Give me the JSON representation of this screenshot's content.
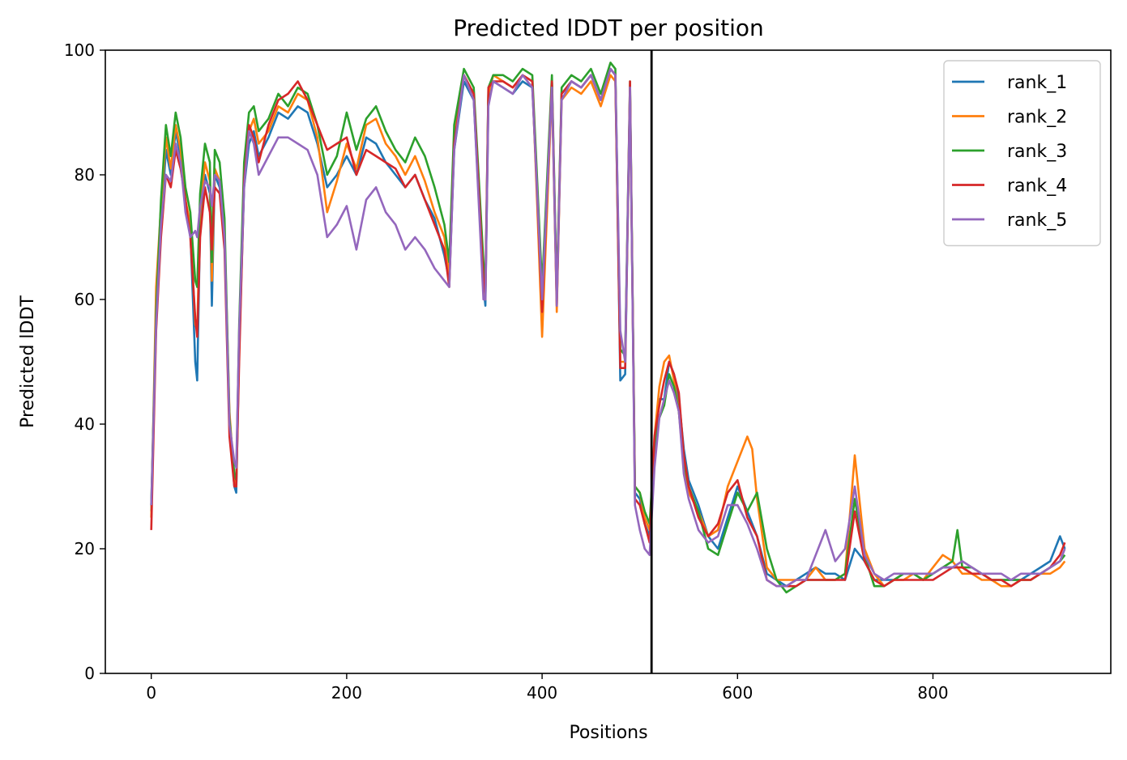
{
  "chart_data": {
    "type": "line",
    "title": "Predicted lDDT per position",
    "xlabel": "Positions",
    "ylabel": "Predicted lDDT",
    "xlim": [
      -47,
      982
    ],
    "ylim": [
      0,
      100
    ],
    "xticks": [
      "0",
      "200",
      "400",
      "600",
      "800"
    ],
    "yticks": [
      "0",
      "20",
      "40",
      "60",
      "80",
      "100"
    ],
    "legend_position": "top-right",
    "vline_x": 512,
    "grid": false,
    "series": [
      {
        "name": "rank_1",
        "color": "#1f77b4",
        "x": [
          0,
          5,
          10,
          15,
          20,
          25,
          30,
          35,
          40,
          45,
          47,
          50,
          55,
          60,
          62,
          65,
          70,
          75,
          80,
          85,
          87,
          90,
          95,
          100,
          105,
          110,
          120,
          130,
          140,
          150,
          160,
          170,
          180,
          190,
          200,
          210,
          220,
          230,
          240,
          250,
          260,
          270,
          280,
          290,
          300,
          305,
          310,
          320,
          330,
          340,
          342,
          345,
          350,
          360,
          370,
          380,
          390,
          400,
          410,
          415,
          420,
          430,
          440,
          450,
          460,
          470,
          475,
          480,
          485,
          490,
          495,
          500,
          505,
          510,
          515,
          520,
          525,
          530,
          535,
          540,
          545,
          550,
          560,
          570,
          580,
          590,
          600,
          610,
          620,
          630,
          640,
          650,
          660,
          670,
          680,
          690,
          700,
          710,
          720,
          730,
          740,
          750,
          760,
          770,
          780,
          790,
          800,
          810,
          820,
          830,
          840,
          850,
          860,
          870,
          880,
          890,
          900,
          910,
          920,
          930,
          935
        ],
        "y": [
          26,
          57,
          72,
          84,
          80,
          87,
          83,
          75,
          71,
          50,
          47,
          72,
          80,
          77,
          59,
          80,
          78,
          70,
          40,
          30,
          29,
          52,
          78,
          85,
          87,
          83,
          86,
          90,
          89,
          91,
          90,
          85,
          78,
          80,
          83,
          80,
          86,
          85,
          82,
          80,
          78,
          80,
          76,
          73,
          67,
          63,
          84,
          95,
          92,
          62,
          59,
          92,
          95,
          94,
          93,
          95,
          94,
          61,
          95,
          60,
          93,
          95,
          94,
          96,
          92,
          97,
          96,
          47,
          48,
          94,
          29,
          28,
          24,
          22,
          36,
          44,
          44,
          50,
          48,
          44,
          36,
          31,
          27,
          22,
          20,
          25,
          30,
          26,
          22,
          16,
          15,
          14,
          15,
          16,
          17,
          16,
          16,
          15,
          20,
          18,
          15,
          15,
          15,
          16,
          16,
          15,
          16,
          17,
          17,
          17,
          16,
          16,
          15,
          15,
          15,
          15,
          16,
          17,
          18,
          22,
          20
        ]
      },
      {
        "name": "rank_2",
        "color": "#ff7f0e",
        "x": [
          0,
          5,
          10,
          15,
          20,
          25,
          30,
          35,
          40,
          45,
          47,
          50,
          55,
          60,
          62,
          65,
          70,
          75,
          80,
          85,
          87,
          90,
          95,
          100,
          105,
          110,
          120,
          130,
          140,
          150,
          160,
          170,
          180,
          190,
          200,
          210,
          220,
          230,
          240,
          250,
          260,
          270,
          280,
          290,
          300,
          305,
          310,
          320,
          330,
          340,
          342,
          345,
          350,
          360,
          370,
          380,
          390,
          395,
          400,
          410,
          415,
          420,
          430,
          440,
          450,
          460,
          470,
          475,
          480,
          485,
          490,
          495,
          500,
          505,
          510,
          515,
          520,
          525,
          530,
          535,
          540,
          545,
          550,
          560,
          570,
          580,
          590,
          600,
          610,
          615,
          620,
          630,
          640,
          650,
          660,
          670,
          680,
          690,
          700,
          710,
          720,
          730,
          740,
          750,
          760,
          770,
          780,
          790,
          800,
          810,
          820,
          830,
          840,
          850,
          860,
          870,
          880,
          890,
          900,
          910,
          920,
          930,
          935
        ],
        "y": [
          25,
          62,
          75,
          86,
          81,
          88,
          84,
          76,
          72,
          56,
          55,
          74,
          82,
          79,
          63,
          81,
          79,
          71,
          42,
          31,
          30,
          54,
          80,
          87,
          89,
          85,
          87,
          91,
          90,
          93,
          92,
          86,
          74,
          79,
          85,
          81,
          88,
          89,
          85,
          83,
          80,
          83,
          79,
          74,
          70,
          64,
          86,
          96,
          93,
          64,
          60,
          93,
          96,
          95,
          94,
          96,
          95,
          75,
          54,
          94,
          58,
          92,
          94,
          93,
          95,
          91,
          96,
          95,
          50,
          50,
          93,
          30,
          29,
          25,
          23,
          38,
          46,
          50,
          51,
          47,
          42,
          33,
          29,
          26,
          22,
          23,
          30,
          34,
          38,
          36,
          28,
          17,
          15,
          15,
          15,
          15,
          17,
          15,
          15,
          16,
          35,
          20,
          16,
          14,
          15,
          15,
          16,
          15,
          17,
          19,
          18,
          16,
          16,
          15,
          15,
          14,
          14,
          15,
          15,
          16,
          16,
          17,
          18
        ]
      },
      {
        "name": "rank_3",
        "color": "#2ca02c",
        "x": [
          0,
          5,
          10,
          15,
          20,
          25,
          30,
          35,
          40,
          45,
          47,
          50,
          55,
          60,
          62,
          65,
          70,
          75,
          80,
          85,
          87,
          90,
          95,
          100,
          105,
          110,
          120,
          130,
          140,
          150,
          160,
          170,
          180,
          190,
          200,
          210,
          220,
          230,
          240,
          250,
          260,
          270,
          280,
          290,
          300,
          305,
          310,
          320,
          330,
          340,
          342,
          345,
          350,
          360,
          370,
          380,
          390,
          400,
          410,
          415,
          420,
          430,
          440,
          450,
          460,
          470,
          475,
          480,
          485,
          490,
          495,
          500,
          505,
          510,
          515,
          520,
          525,
          530,
          535,
          540,
          545,
          550,
          560,
          570,
          580,
          590,
          600,
          610,
          620,
          630,
          640,
          650,
          660,
          670,
          680,
          690,
          700,
          710,
          720,
          730,
          740,
          750,
          760,
          770,
          780,
          790,
          800,
          810,
          820,
          825,
          830,
          840,
          850,
          860,
          870,
          880,
          890,
          900,
          910,
          920,
          930,
          935
        ],
        "y": [
          27,
          58,
          76,
          88,
          83,
          90,
          86,
          78,
          74,
          63,
          62,
          77,
          85,
          82,
          66,
          84,
          82,
          73,
          41,
          32,
          31,
          56,
          82,
          90,
          91,
          87,
          89,
          93,
          91,
          94,
          93,
          88,
          80,
          83,
          90,
          84,
          89,
          91,
          87,
          84,
          82,
          86,
          83,
          78,
          72,
          66,
          88,
          97,
          94,
          66,
          62,
          94,
          96,
          96,
          95,
          97,
          96,
          62,
          96,
          61,
          94,
          96,
          95,
          97,
          93,
          98,
          97,
          52,
          51,
          95,
          30,
          29,
          26,
          24,
          37,
          41,
          43,
          48,
          46,
          42,
          34,
          30,
          26,
          20,
          19,
          24,
          29,
          26,
          29,
          20,
          15,
          13,
          14,
          15,
          15,
          15,
          15,
          16,
          28,
          19,
          14,
          14,
          15,
          16,
          16,
          15,
          16,
          17,
          18,
          23,
          17,
          17,
          16,
          15,
          15,
          15,
          15,
          15,
          16,
          17,
          18,
          19
        ]
      },
      {
        "name": "rank_4",
        "color": "#d62728",
        "x": [
          0,
          5,
          10,
          15,
          20,
          25,
          30,
          35,
          40,
          45,
          47,
          50,
          55,
          60,
          62,
          65,
          70,
          75,
          80,
          85,
          87,
          90,
          95,
          100,
          105,
          110,
          120,
          130,
          140,
          150,
          160,
          170,
          180,
          190,
          200,
          210,
          220,
          230,
          240,
          250,
          260,
          270,
          280,
          290,
          300,
          305,
          310,
          320,
          330,
          340,
          342,
          345,
          350,
          360,
          370,
          380,
          390,
          400,
          410,
          415,
          420,
          430,
          440,
          450,
          460,
          470,
          475,
          480,
          485,
          490,
          495,
          500,
          505,
          510,
          515,
          520,
          525,
          530,
          535,
          540,
          545,
          550,
          560,
          570,
          580,
          590,
          600,
          610,
          620,
          630,
          640,
          650,
          660,
          670,
          680,
          690,
          700,
          710,
          720,
          730,
          740,
          750,
          760,
          770,
          780,
          790,
          800,
          810,
          820,
          830,
          840,
          850,
          860,
          870,
          880,
          890,
          900,
          910,
          920,
          930,
          935
        ],
        "y": [
          23,
          55,
          70,
          80,
          78,
          84,
          81,
          76,
          70,
          57,
          54,
          70,
          78,
          74,
          68,
          78,
          77,
          68,
          38,
          30,
          30,
          50,
          79,
          88,
          86,
          82,
          88,
          92,
          93,
          95,
          92,
          88,
          84,
          85,
          86,
          80,
          84,
          83,
          82,
          81,
          78,
          80,
          76,
          72,
          68,
          62,
          85,
          96,
          93,
          63,
          61,
          94,
          95,
          95,
          94,
          96,
          95,
          58,
          95,
          59,
          93,
          95,
          94,
          96,
          92,
          97,
          96,
          49,
          49,
          95,
          28,
          27,
          24,
          21,
          38,
          43,
          47,
          50,
          48,
          45,
          35,
          30,
          25,
          22,
          24,
          29,
          31,
          25,
          22,
          15,
          14,
          14,
          14,
          15,
          15,
          15,
          15,
          15,
          26,
          18,
          15,
          14,
          15,
          15,
          15,
          15,
          15,
          16,
          17,
          17,
          16,
          16,
          15,
          15,
          14,
          15,
          15,
          16,
          17,
          19,
          21
        ]
      },
      {
        "name": "rank_5",
        "color": "#9467bd",
        "x": [
          0,
          5,
          10,
          15,
          20,
          25,
          30,
          35,
          40,
          45,
          47,
          50,
          55,
          60,
          62,
          65,
          70,
          75,
          80,
          85,
          87,
          90,
          95,
          100,
          105,
          110,
          120,
          130,
          140,
          150,
          160,
          170,
          180,
          190,
          200,
          210,
          220,
          230,
          240,
          250,
          260,
          270,
          280,
          290,
          300,
          305,
          310,
          320,
          330,
          340,
          342,
          345,
          350,
          360,
          370,
          380,
          390,
          400,
          410,
          415,
          420,
          430,
          440,
          450,
          460,
          470,
          475,
          480,
          485,
          490,
          495,
          500,
          505,
          510,
          515,
          520,
          525,
          530,
          535,
          540,
          545,
          550,
          560,
          570,
          580,
          590,
          600,
          610,
          620,
          630,
          640,
          650,
          660,
          670,
          680,
          690,
          700,
          710,
          720,
          730,
          740,
          750,
          760,
          770,
          780,
          790,
          800,
          810,
          820,
          830,
          840,
          850,
          860,
          870,
          880,
          890,
          900,
          910,
          920,
          930,
          935
        ],
        "y": [
          27,
          56,
          72,
          80,
          79,
          85,
          82,
          74,
          70,
          71,
          70,
          75,
          79,
          78,
          75,
          80,
          79,
          70,
          40,
          34,
          33,
          55,
          78,
          87,
          85,
          80,
          83,
          86,
          86,
          85,
          84,
          80,
          70,
          72,
          75,
          68,
          76,
          78,
          74,
          72,
          68,
          70,
          68,
          65,
          63,
          62,
          84,
          96,
          92,
          60,
          60,
          91,
          95,
          94,
          93,
          96,
          94,
          60,
          94,
          59,
          92,
          95,
          94,
          96,
          92,
          97,
          96,
          55,
          50,
          94,
          27,
          23,
          20,
          19,
          33,
          41,
          44,
          47,
          45,
          42,
          32,
          28,
          23,
          21,
          22,
          27,
          27,
          24,
          20,
          15,
          14,
          14,
          15,
          15,
          19,
          23,
          18,
          20,
          30,
          19,
          16,
          15,
          16,
          16,
          16,
          16,
          16,
          17,
          17,
          18,
          17,
          16,
          16,
          16,
          15,
          16,
          16,
          16,
          17,
          18,
          20
        ]
      }
    ]
  }
}
